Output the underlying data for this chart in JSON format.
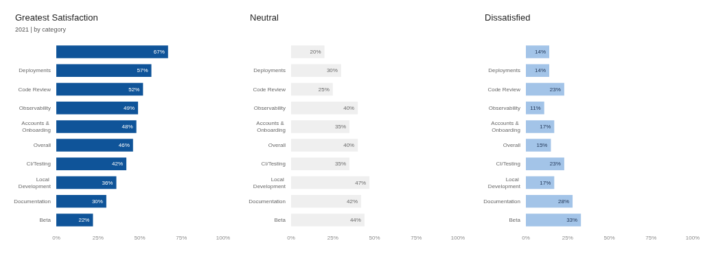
{
  "chart_data": [
    {
      "type": "bar",
      "orientation": "horizontal",
      "title": "Greatest Satisfaction",
      "subtitle": "2021 | by category",
      "categories": [
        null,
        "Deployments",
        "Code Review",
        "Observability",
        "Accounts & Onboarding",
        "Overall",
        "CI/Testing",
        "Local Development",
        "Documentation",
        "Beta"
      ],
      "series": [
        {
          "color": "#0f5499",
          "values": [
            67,
            57,
            52,
            49,
            48,
            46,
            42,
            36,
            30,
            22
          ],
          "value_labels": [
            "67%",
            "57%",
            "52%",
            "49%",
            "48%",
            "46%",
            "42%",
            "36%",
            "30%",
            "22%"
          ]
        }
      ],
      "xlim": [
        0,
        100
      ],
      "xticks": [
        {
          "value": 0,
          "label": "0%"
        },
        {
          "value": 25,
          "label": "25%"
        },
        {
          "value": 50,
          "label": "50%"
        },
        {
          "value": 75,
          "label": "75%"
        },
        {
          "value": 100,
          "label": "100%"
        }
      ]
    },
    {
      "type": "bar",
      "orientation": "horizontal",
      "title": "Neutral",
      "categories": [
        null,
        "Deployments",
        "Code Review",
        "Observability",
        "Accounts & Onboarding",
        "Overall",
        "CI/Testing",
        "Local Development",
        "Documentation",
        "Beta"
      ],
      "series": [
        {
          "color": "#efefef",
          "values": [
            20,
            30,
            25,
            40,
            35,
            40,
            35,
            47,
            42,
            44
          ],
          "value_labels": [
            "20%",
            "30%",
            "25%",
            "40%",
            "35%",
            "40%",
            "35%",
            "47%",
            "42%",
            "44%"
          ]
        }
      ],
      "xlim": [
        0,
        100
      ],
      "xticks": [
        {
          "value": 0,
          "label": "0%"
        },
        {
          "value": 25,
          "label": "25%"
        },
        {
          "value": 50,
          "label": "50%"
        },
        {
          "value": 75,
          "label": "75%"
        },
        {
          "value": 100,
          "label": "100%"
        }
      ]
    },
    {
      "type": "bar",
      "orientation": "horizontal",
      "title": "Dissatisfied",
      "categories": [
        null,
        "Deployments",
        "Code Review",
        "Observability",
        "Accounts & Onboarding",
        "Overall",
        "CI/Testing",
        "Local Development",
        "Documentation",
        "Beta"
      ],
      "series": [
        {
          "color": "#a3c4e8",
          "values": [
            14,
            14,
            23,
            11,
            17,
            15,
            23,
            17,
            28,
            33
          ],
          "value_labels": [
            "14%",
            "14%",
            "23%",
            "11%",
            "17%",
            "15%",
            "23%",
            "17%",
            "28%",
            "33%"
          ]
        }
      ],
      "xlim": [
        0,
        100
      ],
      "xticks": [
        {
          "value": 0,
          "label": "0%"
        },
        {
          "value": 25,
          "label": "25%"
        },
        {
          "value": 50,
          "label": "50%"
        },
        {
          "value": 75,
          "label": "75%"
        },
        {
          "value": 100,
          "label": "100%"
        }
      ]
    }
  ]
}
